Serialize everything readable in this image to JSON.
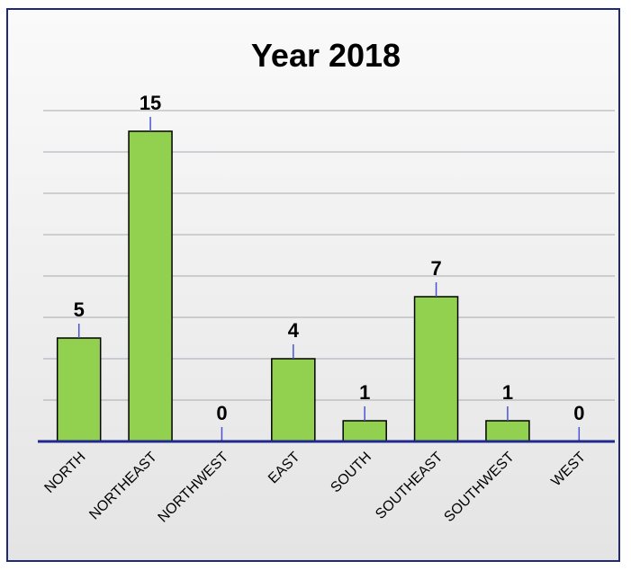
{
  "chart_data": {
    "type": "bar",
    "title": "Year 2018",
    "categories": [
      "NORTH",
      "NORTHEAST",
      "NORTHWEST",
      "EAST",
      "SOUTH",
      "SOUTHEAST",
      "SOUTHWEST",
      "WEST"
    ],
    "values": [
      5,
      15,
      0,
      4,
      1,
      7,
      1,
      0
    ],
    "xlabel": "",
    "ylabel": "",
    "ylim": [
      0,
      16
    ],
    "grid": true,
    "legend": "none",
    "data_labels": true
  },
  "colors": {
    "bar_fill": "#92d050",
    "bar_stroke": "#000000",
    "axis": "#1f2a8c",
    "gridline": "#a9aab3",
    "leader_line": "#4a52d4",
    "background_top": "#fafafa",
    "background_bottom": "#e4e4e4",
    "frame_border": "#1e2a78"
  }
}
